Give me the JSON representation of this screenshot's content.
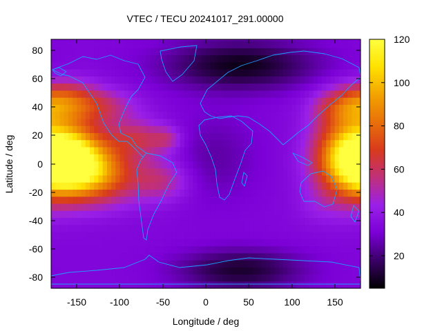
{
  "chart_data": {
    "type": "heatmap",
    "title": "VTEC / TECU 20241017_291.00000",
    "xlabel": "Longitude / deg",
    "ylabel": "Latitude / deg",
    "xlim": [
      -180,
      180
    ],
    "ylim": [
      -88,
      88
    ],
    "xticks": [
      -150,
      -100,
      -50,
      0,
      50,
      100,
      150
    ],
    "yticks": [
      -80,
      -60,
      -40,
      -20,
      0,
      20,
      40,
      60,
      80
    ],
    "colorbar": {
      "min": 5,
      "max": 120,
      "ticks": [
        20,
        40,
        60,
        80,
        100,
        120
      ],
      "palette": [
        "#000000",
        "#3a0066",
        "#7a00d6",
        "#9a20e8",
        "#c0307a",
        "#d83a1c",
        "#e8700a",
        "#f2a300",
        "#ffe200",
        "#ffff40"
      ]
    },
    "overlay": "coastlines",
    "coastline_color": "#1ea0ff",
    "features": [
      {
        "lon": -160,
        "lat": 5,
        "sx": 30,
        "sy": 16,
        "value": 80
      },
      {
        "lon": -130,
        "lat": -8,
        "sx": 40,
        "sy": 14,
        "value": 45
      },
      {
        "lon": -165,
        "lat": 45,
        "sx": 28,
        "sy": 10,
        "value": 35
      },
      {
        "lon": -120,
        "lat": 40,
        "sx": 30,
        "sy": 9,
        "value": 20
      },
      {
        "lon": -80,
        "lat": 18,
        "sx": 25,
        "sy": 9,
        "value": 25
      },
      {
        "lon": -45,
        "lat": 18,
        "sx": 12,
        "sy": 6,
        "value": 15
      },
      {
        "lon": -50,
        "lat": -12,
        "sx": 22,
        "sy": 10,
        "value": 18
      },
      {
        "lon": 165,
        "lat": 5,
        "sx": 28,
        "sy": 20,
        "value": 60
      },
      {
        "lon": 160,
        "lat": 40,
        "sx": 25,
        "sy": 9,
        "value": 25
      },
      {
        "lon": 130,
        "lat": -30,
        "sx": 20,
        "sy": 10,
        "value": 5
      },
      {
        "lon": 40,
        "lat": 70,
        "sx": 60,
        "sy": 12,
        "value": -25
      },
      {
        "lon": 40,
        "lat": -75,
        "sx": 50,
        "sy": 10,
        "value": -22
      },
      {
        "lon": 10,
        "lat": 5,
        "sx": 35,
        "sy": 22,
        "value": -8
      }
    ],
    "base_value": 33
  }
}
